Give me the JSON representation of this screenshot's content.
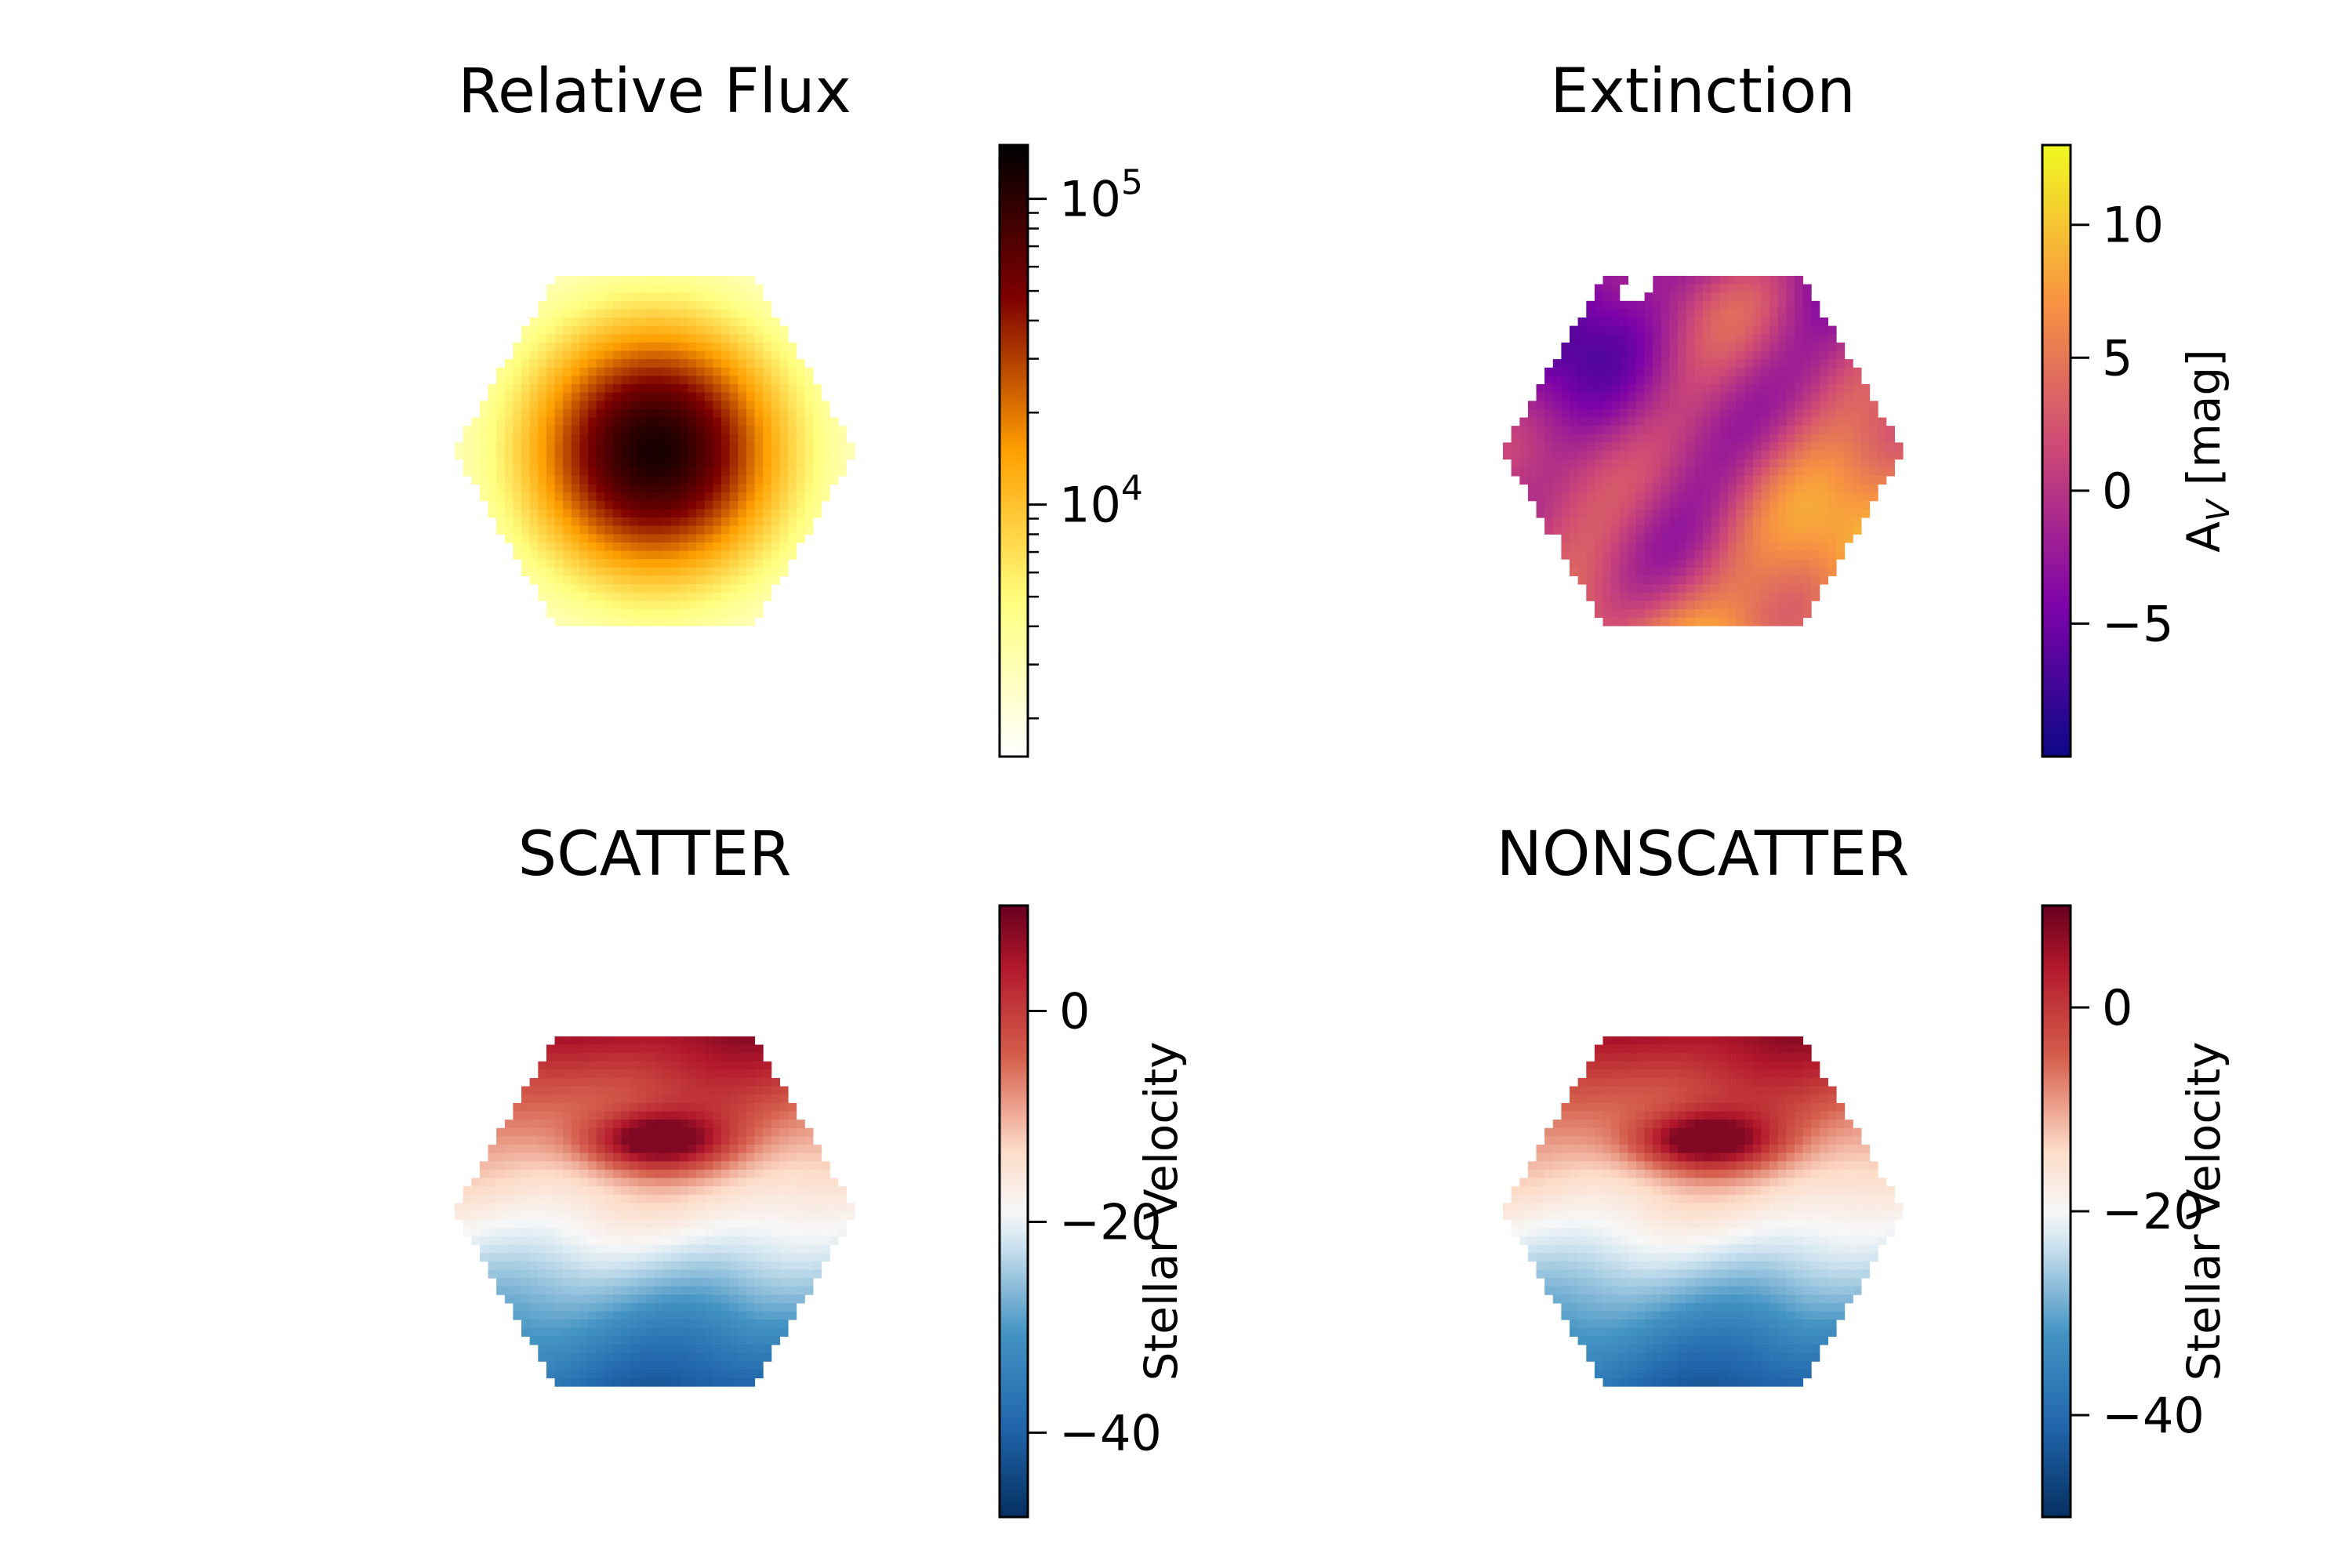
{
  "chart_data": [
    {
      "type": "heatmap",
      "title": "Relative Flux",
      "colormap": "afmhot_r",
      "scale": "log",
      "colorbar": {
        "label": "",
        "range": [
          1500,
          150000
        ],
        "ticks": [
          {
            "value": 10000,
            "base": "10",
            "exp": "4"
          },
          {
            "value": 100000,
            "base": "10",
            "exp": "5"
          }
        ]
      },
      "field": {
        "pattern": "radial-peak",
        "center_value": 120000,
        "edge_value": 1800
      }
    },
    {
      "type": "heatmap",
      "title": "Extinction",
      "colormap": "plasma",
      "scale": "linear",
      "colorbar": {
        "label_main": "A",
        "label_sub": "V",
        "label_rest": " [mag]",
        "range": [
          -10,
          13
        ],
        "ticks": [
          {
            "value": -5,
            "label": "−5"
          },
          {
            "value": 0,
            "label": "0"
          },
          {
            "value": 5,
            "label": "5"
          },
          {
            "value": 10,
            "label": "10"
          }
        ]
      },
      "field": {
        "pattern": "patchy",
        "min_value": -8,
        "max_value": 12
      }
    },
    {
      "type": "heatmap",
      "title": "SCATTER",
      "colormap": "RdBu_r",
      "scale": "linear",
      "colorbar": {
        "label": "Stellar Velocity",
        "range": [
          -48,
          10
        ],
        "ticks": [
          {
            "value": -40,
            "label": "−40"
          },
          {
            "value": -20,
            "label": "−20"
          },
          {
            "value": 0,
            "label": "0"
          }
        ]
      },
      "field": {
        "pattern": "velocity",
        "min_value": -47,
        "max_value": 8
      }
    },
    {
      "type": "heatmap",
      "title": "NONSCATTER",
      "colormap": "RdBu_r",
      "scale": "linear",
      "colorbar": {
        "label": "Stellar Velocity",
        "range": [
          -50,
          10
        ],
        "ticks": [
          {
            "value": -40,
            "label": "−40"
          },
          {
            "value": -20,
            "label": "−20"
          },
          {
            "value": 0,
            "label": "0"
          }
        ]
      },
      "field": {
        "pattern": "velocity",
        "min_value": -49,
        "max_value": 8
      }
    }
  ]
}
